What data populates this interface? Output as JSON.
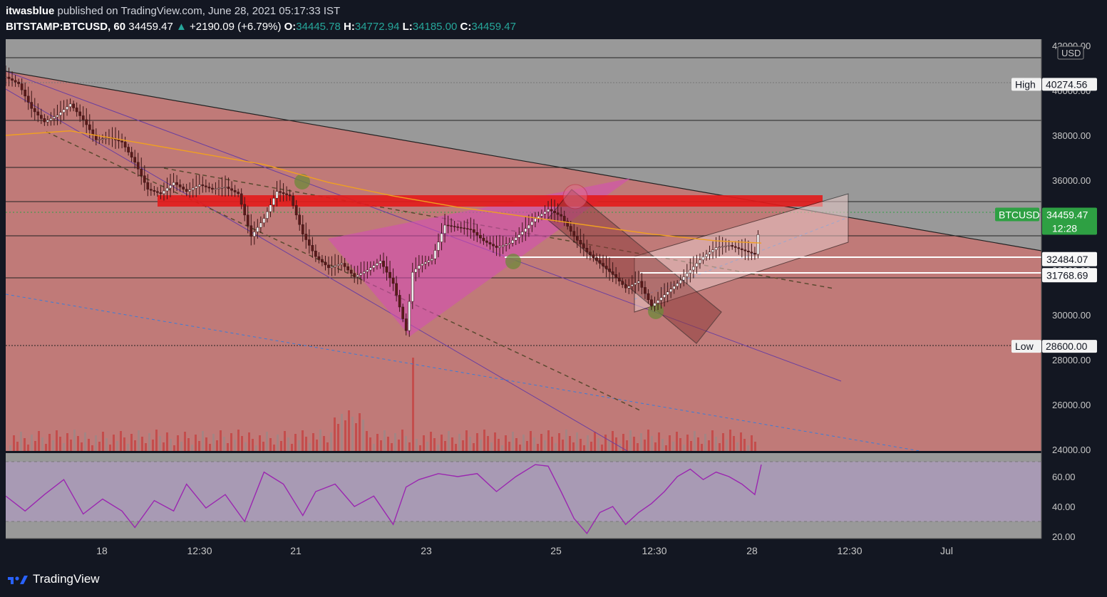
{
  "header": {
    "author": "itwasblue",
    "published_text": "published on TradingView.com, June 28, 2021 05:17:33 IST",
    "symbol": "BITSTAMP:BTCUSD, 60",
    "last": "34459.47",
    "arrow": "▲",
    "change": "+2190.09 (+6.79%)",
    "o_label": "O:",
    "o": "34445.78",
    "h_label": "H:",
    "h": "34772.94",
    "l_label": "L:",
    "l": "34185.00",
    "c_label": "C:",
    "c": "34459.47"
  },
  "brand": "TradingView",
  "colors": {
    "background": "#131722",
    "pane": "#999999",
    "channel_fill": "#c07a78",
    "resistance": "#e31b1b",
    "triangle": "#d44fb4",
    "ma": "#f0a020",
    "rsi": "#9b27b0",
    "bull": "#8c8c8c",
    "bear": "#c62828",
    "accent_green": "#26a69a"
  },
  "chart_data": {
    "type": "candlestick",
    "currency": "USD",
    "y_ticks": [
      "24000.00",
      "26000.00",
      "28000.00",
      "30000.00",
      "32000.00",
      "34000.00",
      "36000.00",
      "38000.00",
      "40000.00",
      "42000.00"
    ],
    "x_ticks": [
      "18",
      "12:30",
      "21",
      "23",
      "25",
      "12:30",
      "28",
      "12:30",
      "Jul"
    ],
    "markers": [
      {
        "label": "High",
        "value": "40274.56"
      },
      {
        "label": "Low",
        "value": "28600.00"
      }
    ],
    "price_label": {
      "name": "BTCUSD",
      "value": "34459.47",
      "countdown": "12:28"
    },
    "horizontal_levels": [
      "32484.07",
      "31768.69"
    ],
    "rsi_ticks": [
      "20.00",
      "40.00",
      "60.00"
    ],
    "ylim": [
      24000,
      42000
    ],
    "price_path": [
      [
        0,
        40600
      ],
      [
        2,
        40300
      ],
      [
        4,
        39200
      ],
      [
        6,
        38600
      ],
      [
        8,
        38900
      ],
      [
        10,
        39400
      ],
      [
        12,
        38700
      ],
      [
        14,
        37800
      ],
      [
        16,
        37900
      ],
      [
        18,
        37700
      ],
      [
        20,
        36800
      ],
      [
        22,
        35600
      ],
      [
        24,
        35400
      ],
      [
        26,
        35900
      ],
      [
        28,
        35500
      ],
      [
        30,
        35800
      ],
      [
        32,
        35600
      ],
      [
        34,
        35700
      ],
      [
        36,
        35400
      ],
      [
        38,
        33500
      ],
      [
        40,
        34300
      ],
      [
        42,
        35500
      ],
      [
        44,
        35300
      ],
      [
        46,
        33600
      ],
      [
        48,
        32600
      ],
      [
        50,
        32100
      ],
      [
        52,
        32300
      ],
      [
        54,
        31700
      ],
      [
        56,
        32000
      ],
      [
        58,
        32400
      ],
      [
        60,
        31400
      ],
      [
        62,
        29300
      ],
      [
        63,
        31900
      ],
      [
        64,
        32200
      ],
      [
        66,
        32500
      ],
      [
        68,
        34000
      ],
      [
        70,
        33900
      ],
      [
        72,
        33800
      ],
      [
        74,
        33300
      ],
      [
        76,
        33000
      ],
      [
        78,
        33200
      ],
      [
        80,
        33700
      ],
      [
        82,
        34300
      ],
      [
        84,
        34700
      ],
      [
        86,
        34400
      ],
      [
        88,
        33500
      ],
      [
        90,
        32800
      ],
      [
        92,
        32300
      ],
      [
        94,
        31800
      ],
      [
        96,
        31200
      ],
      [
        98,
        31500
      ],
      [
        100,
        30400
      ],
      [
        102,
        30900
      ],
      [
        104,
        31400
      ],
      [
        106,
        32000
      ],
      [
        108,
        32600
      ],
      [
        110,
        33000
      ],
      [
        112,
        33100
      ],
      [
        114,
        32900
      ],
      [
        116,
        32700
      ],
      [
        117,
        34459
      ]
    ],
    "ma_path": [
      [
        0,
        38000
      ],
      [
        10,
        38200
      ],
      [
        20,
        37700
      ],
      [
        30,
        37200
      ],
      [
        40,
        36700
      ],
      [
        50,
        35900
      ],
      [
        60,
        35300
      ],
      [
        70,
        34800
      ],
      [
        80,
        34400
      ],
      [
        90,
        34000
      ],
      [
        100,
        33600
      ],
      [
        110,
        33300
      ],
      [
        117,
        33200
      ]
    ],
    "rsi_path": [
      [
        0,
        47
      ],
      [
        3,
        37
      ],
      [
        6,
        48
      ],
      [
        9,
        58
      ],
      [
        12,
        35
      ],
      [
        15,
        45
      ],
      [
        18,
        37
      ],
      [
        20,
        26
      ],
      [
        23,
        44
      ],
      [
        26,
        37
      ],
      [
        28,
        55
      ],
      [
        31,
        39
      ],
      [
        34,
        48
      ],
      [
        37,
        30
      ],
      [
        40,
        63
      ],
      [
        43,
        55
      ],
      [
        46,
        34
      ],
      [
        48,
        50
      ],
      [
        51,
        55
      ],
      [
        54,
        40
      ],
      [
        57,
        47
      ],
      [
        60,
        28
      ],
      [
        62,
        53
      ],
      [
        64,
        58
      ],
      [
        67,
        62
      ],
      [
        70,
        60
      ],
      [
        73,
        62
      ],
      [
        76,
        50
      ],
      [
        79,
        60
      ],
      [
        82,
        68
      ],
      [
        84,
        67
      ],
      [
        86,
        50
      ],
      [
        88,
        32
      ],
      [
        90,
        22
      ],
      [
        92,
        36
      ],
      [
        94,
        40
      ],
      [
        96,
        28
      ],
      [
        98,
        36
      ],
      [
        100,
        42
      ],
      [
        102,
        50
      ],
      [
        104,
        60
      ],
      [
        106,
        65
      ],
      [
        108,
        58
      ],
      [
        110,
        63
      ],
      [
        112,
        60
      ],
      [
        114,
        55
      ],
      [
        116,
        48
      ],
      [
        117,
        68
      ]
    ]
  }
}
